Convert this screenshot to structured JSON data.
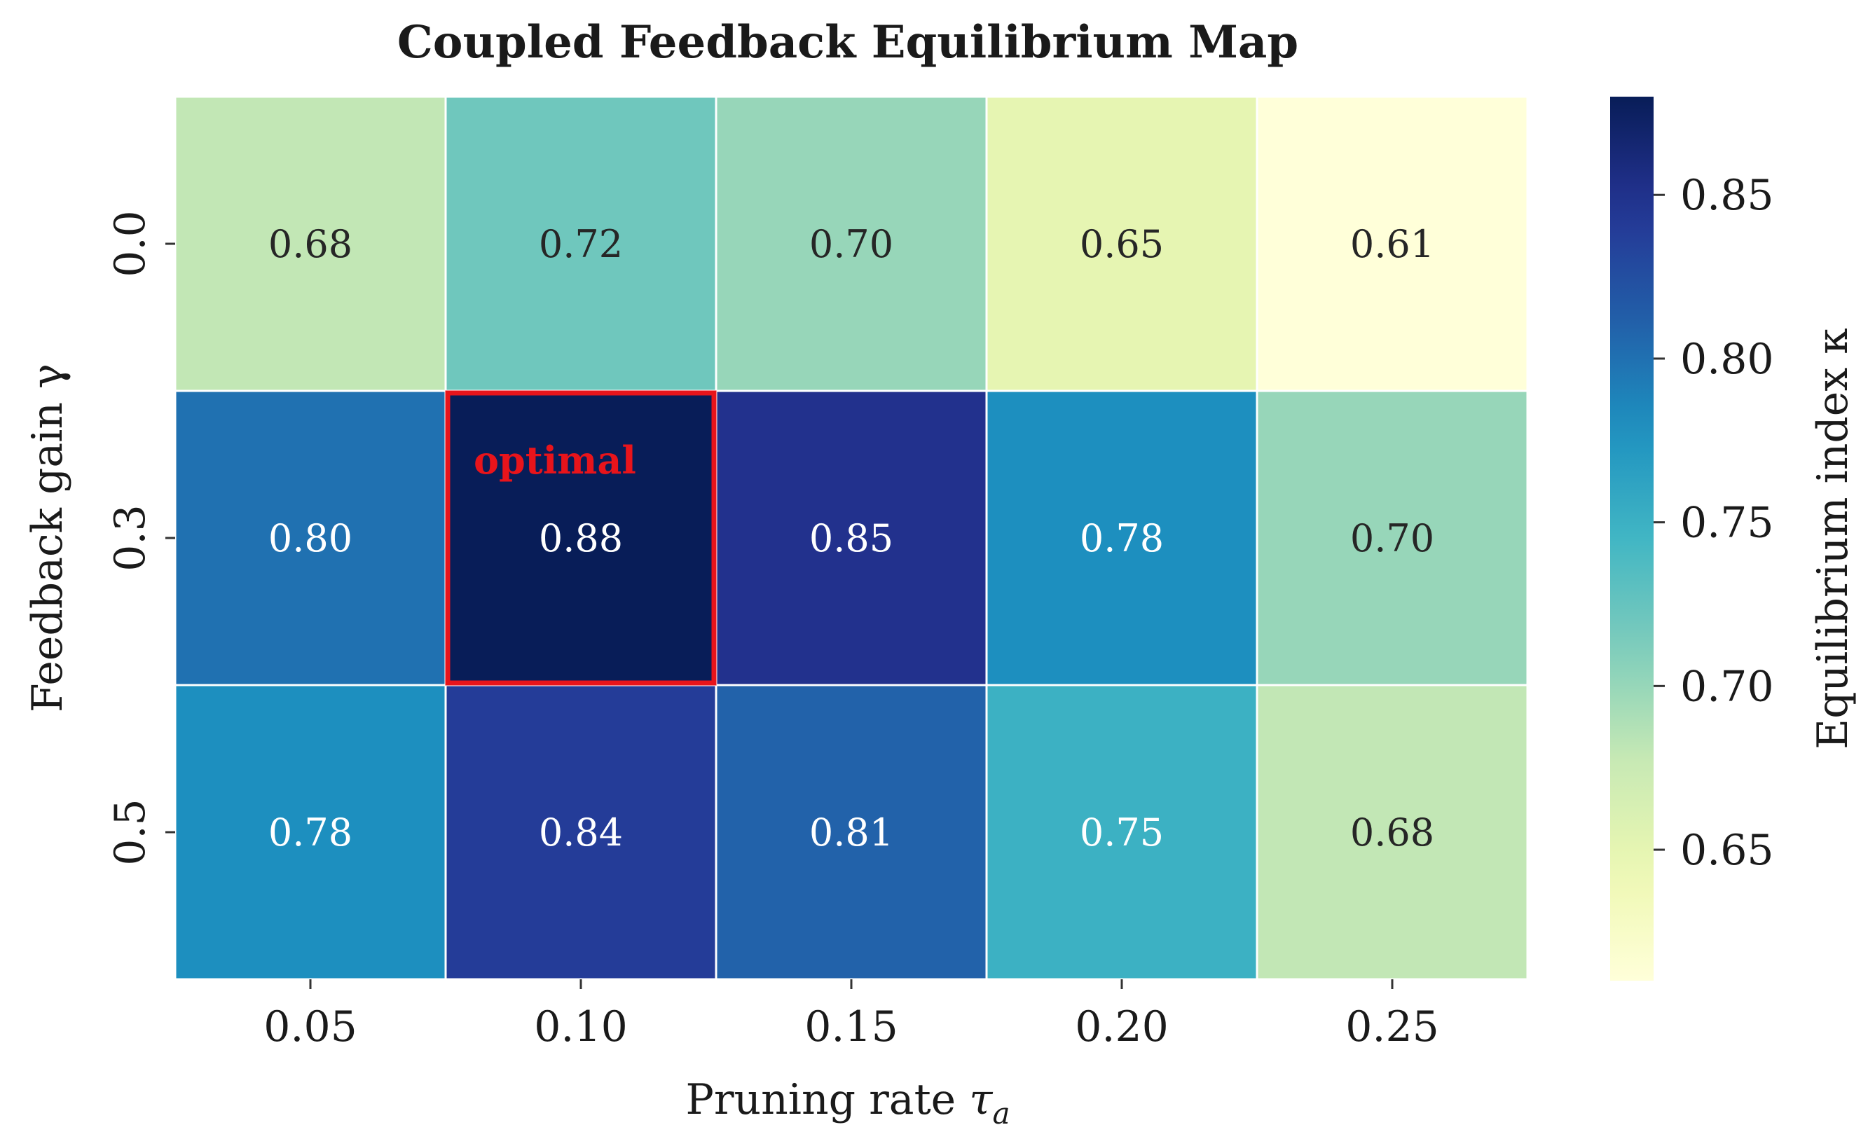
{
  "chart_data": {
    "type": "heatmap",
    "title": "Coupled Feedback Equilibrium Map",
    "xlabel": "Pruning rate",
    "xlabel_symbol": "τ",
    "xlabel_subscript": "a",
    "ylabel": "Feedback gain γ",
    "x_categories": [
      "0.05",
      "0.10",
      "0.15",
      "0.20",
      "0.25"
    ],
    "y_categories": [
      "0.0",
      "0.3",
      "0.5"
    ],
    "values": [
      [
        0.68,
        0.72,
        0.7,
        0.65,
        0.61
      ],
      [
        0.8,
        0.88,
        0.85,
        0.78,
        0.7
      ],
      [
        0.78,
        0.84,
        0.81,
        0.75,
        0.68
      ]
    ],
    "value_labels": [
      [
        "0.68",
        "0.72",
        "0.70",
        "0.65",
        "0.61"
      ],
      [
        "0.80",
        "0.88",
        "0.85",
        "0.78",
        "0.70"
      ],
      [
        "0.78",
        "0.84",
        "0.81",
        "0.75",
        "0.68"
      ]
    ],
    "colormap": "YlGnBu",
    "vmin": 0.61,
    "vmax": 0.88,
    "colorbar": {
      "label": "Equilibrium index κ",
      "ticks": [
        0.65,
        0.7,
        0.75,
        0.8,
        0.85
      ],
      "tick_labels": [
        "0.65",
        "0.70",
        "0.75",
        "0.80",
        "0.85"
      ]
    },
    "highlight": {
      "row": 1,
      "col": 1,
      "label": "optimal",
      "color": "#e8141b"
    },
    "grid": false
  }
}
